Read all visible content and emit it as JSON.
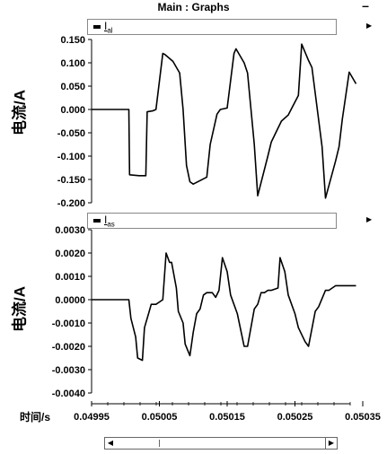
{
  "window": {
    "title": "Main : Graphs",
    "minimize_label": "–"
  },
  "graph1": {
    "legend_name": "I",
    "legend_sub": "al",
    "ylabel": "电流/A"
  },
  "graph2": {
    "legend_name": "I",
    "legend_sub": "as",
    "ylabel": "电流/A"
  },
  "xaxis": {
    "label": "时间/s"
  },
  "scrollbar": {
    "left_arrow": "◀",
    "right_arrow": "▶"
  },
  "icons": {
    "legend_menu_arrow": "triangle-right-icon"
  },
  "chart_data": [
    {
      "type": "line",
      "ylim": [
        -0.2,
        0.15
      ],
      "yticks": [
        "0.150",
        "0.100",
        "0.050",
        "0.000",
        "-0.050",
        "-0.100",
        "-0.150",
        "-0.200"
      ],
      "yticks_values": [
        0.15,
        0.1,
        0.05,
        0.0,
        -0.05,
        -0.1,
        -0.15,
        -0.2
      ],
      "xlim": [
        0.04995,
        0.05035
      ],
      "series": [
        {
          "color": "#000000",
          "x": [
            0.04995,
            0.050005,
            0.050006,
            0.05002,
            0.05003,
            0.050032,
            0.05004,
            0.050045,
            0.050055,
            0.050058,
            0.05007,
            0.05008,
            0.050085,
            0.05009,
            0.050095,
            0.0501,
            0.05012,
            0.050125,
            0.050135,
            0.05014,
            0.05015,
            0.05016,
            0.050163,
            0.050175,
            0.05018,
            0.05019,
            0.050195,
            0.05021,
            0.050215,
            0.05023,
            0.05024,
            0.050245,
            0.050255,
            0.05026,
            0.05027,
            0.050275,
            0.05029,
            0.050295,
            0.05031,
            0.050315,
            0.05032,
            0.05033,
            0.05034
          ],
          "values": [
            0.0,
            0.0,
            -0.14,
            -0.142,
            -0.142,
            -0.005,
            -0.003,
            0.0,
            0.12,
            0.118,
            0.103,
            0.078,
            0.0,
            -0.12,
            -0.155,
            -0.16,
            -0.145,
            -0.075,
            -0.01,
            0.0,
            0.003,
            0.12,
            0.13,
            0.1,
            0.078,
            -0.075,
            -0.185,
            -0.1,
            -0.07,
            -0.025,
            -0.012,
            0.002,
            0.03,
            0.14,
            0.105,
            0.09,
            -0.08,
            -0.19,
            -0.11,
            -0.08,
            -0.02,
            0.08,
            0.055
          ]
        }
      ]
    },
    {
      "type": "line",
      "ylim": [
        -0.004,
        0.003
      ],
      "yticks": [
        "0.0030",
        "0.0020",
        "0.0010",
        "0.0000",
        "-0.0010",
        "-0.0020",
        "-0.0030",
        "-0.0040"
      ],
      "yticks_values": [
        0.003,
        0.002,
        0.001,
        0.0,
        -0.001,
        -0.002,
        -0.003,
        -0.004
      ],
      "xticks": [
        "0.04995",
        "0.05005",
        "0.05015",
        "0.05025",
        "0.05035"
      ],
      "xticks_values": [
        0.04995,
        0.05005,
        0.05015,
        0.05025,
        0.05035
      ],
      "xlim": [
        0.04995,
        0.05035
      ],
      "series": [
        {
          "color": "#000000",
          "x": [
            0.04995,
            0.050005,
            0.050008,
            0.050015,
            0.050018,
            0.050025,
            0.050028,
            0.050035,
            0.050038,
            0.050045,
            0.05005,
            0.050055,
            0.05006,
            0.050065,
            0.050068,
            0.050075,
            0.050078,
            0.050085,
            0.050088,
            0.050095,
            0.0501,
            0.050105,
            0.05011,
            0.050115,
            0.05012,
            0.050128,
            0.050133,
            0.050138,
            0.050143,
            0.05015,
            0.050155,
            0.050165,
            0.05017,
            0.050175,
            0.05018,
            0.05019,
            0.050195,
            0.0502,
            0.050205,
            0.05021,
            0.050215,
            0.050225,
            0.050228,
            0.050235,
            0.05024,
            0.05025,
            0.050255,
            0.050265,
            0.05027,
            0.05028,
            0.050285,
            0.050295,
            0.0503,
            0.05031,
            0.050315,
            0.050325,
            0.05033,
            0.050335,
            0.05034
          ],
          "values": [
            0.0,
            0.0,
            -0.0008,
            -0.0016,
            -0.0025,
            -0.0026,
            -0.0012,
            -0.0005,
            -0.0002,
            -0.0002,
            -0.0001,
            0.0,
            0.002,
            0.0016,
            0.0016,
            0.0005,
            -0.0005,
            -0.001,
            -0.0019,
            -0.0024,
            -0.0014,
            -0.0006,
            -0.0004,
            0.0002,
            0.0003,
            0.0003,
            0.0001,
            0.0004,
            0.0018,
            0.0012,
            0.0002,
            -0.0006,
            -0.0013,
            -0.002,
            -0.002,
            -0.0004,
            -0.0002,
            0.0003,
            0.0003,
            0.0004,
            0.0004,
            0.0005,
            0.0018,
            0.0012,
            0.0002,
            -0.0006,
            -0.0012,
            -0.0018,
            -0.002,
            -0.0005,
            -0.0003,
            0.0004,
            0.0004,
            0.0006,
            0.0006,
            0.0006,
            0.0006,
            0.0006,
            0.0006
          ]
        }
      ]
    }
  ]
}
